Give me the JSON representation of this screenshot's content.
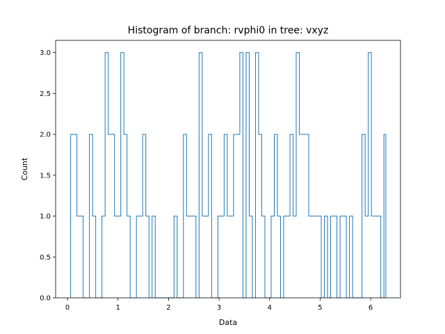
{
  "chart_data": {
    "type": "histogram",
    "title": "Histogram of branch: rvphi0 in tree: vxyz",
    "xlabel": "Data",
    "ylabel": "Count",
    "xlim": [
      -0.235,
      6.59
    ],
    "ylim": [
      0,
      3.15
    ],
    "xticks": [
      0,
      1,
      2,
      3,
      4,
      5,
      6
    ],
    "yticks": [
      0.0,
      0.5,
      1.0,
      1.5,
      2.0,
      2.5,
      3.0
    ],
    "ytick_labels": [
      "0.0",
      "0.5",
      "1.0",
      "1.5",
      "2.0",
      "2.5",
      "3.0"
    ],
    "grid": false,
    "legend": "none",
    "line_color": "#1f77b4",
    "bin_edges": [
      0.062,
      0.124,
      0.186,
      0.248,
      0.31,
      0.372,
      0.434,
      0.496,
      0.558,
      0.62,
      0.682,
      0.744,
      0.806,
      0.868,
      0.93,
      0.992,
      1.054,
      1.116,
      1.178,
      1.24,
      1.302,
      1.364,
      1.426,
      1.488,
      1.55,
      1.612,
      1.674,
      1.736,
      1.798,
      1.86,
      1.922,
      1.984,
      2.046,
      2.108,
      2.17,
      2.232,
      2.294,
      2.356,
      2.418,
      2.48,
      2.542,
      2.604,
      2.666,
      2.728,
      2.79,
      2.852,
      2.914,
      2.976,
      3.038,
      3.1,
      3.162,
      3.224,
      3.286,
      3.348,
      3.41,
      3.472,
      3.534,
      3.596,
      3.658,
      3.72,
      3.782,
      3.844,
      3.906,
      3.968,
      4.03,
      4.092,
      4.154,
      4.216,
      4.278,
      4.34,
      4.402,
      4.464,
      4.526,
      4.588,
      4.65,
      4.712,
      4.774,
      4.836,
      4.898,
      4.96,
      5.022,
      5.084,
      5.146,
      5.208,
      5.27,
      5.332,
      5.394,
      5.456,
      5.518,
      5.58,
      5.642,
      5.704,
      5.766,
      5.828,
      5.89,
      5.952,
      6.014,
      6.076,
      6.138,
      6.2,
      6.262,
      6.3
    ],
    "counts": [
      2,
      2,
      1,
      1,
      0,
      0,
      2,
      1,
      0,
      0,
      1,
      3,
      2,
      2,
      1,
      1,
      3,
      2,
      1,
      0,
      0,
      1,
      1,
      2,
      1,
      0,
      1,
      0,
      0,
      0,
      0,
      0,
      0,
      1,
      0,
      0,
      2,
      1,
      1,
      1,
      0,
      3,
      1,
      1,
      2,
      0,
      0,
      1,
      1,
      2,
      1,
      1,
      2,
      2,
      3,
      0,
      3,
      1,
      0,
      3,
      2,
      1,
      0,
      0,
      1,
      2,
      1,
      0,
      1,
      1,
      2,
      1,
      3,
      2,
      2,
      2,
      1,
      1,
      1,
      1,
      0,
      1,
      0,
      1,
      1,
      0,
      1,
      1,
      0,
      1,
      0,
      0,
      0,
      2,
      1,
      3,
      1,
      1,
      1,
      0,
      2
    ]
  }
}
